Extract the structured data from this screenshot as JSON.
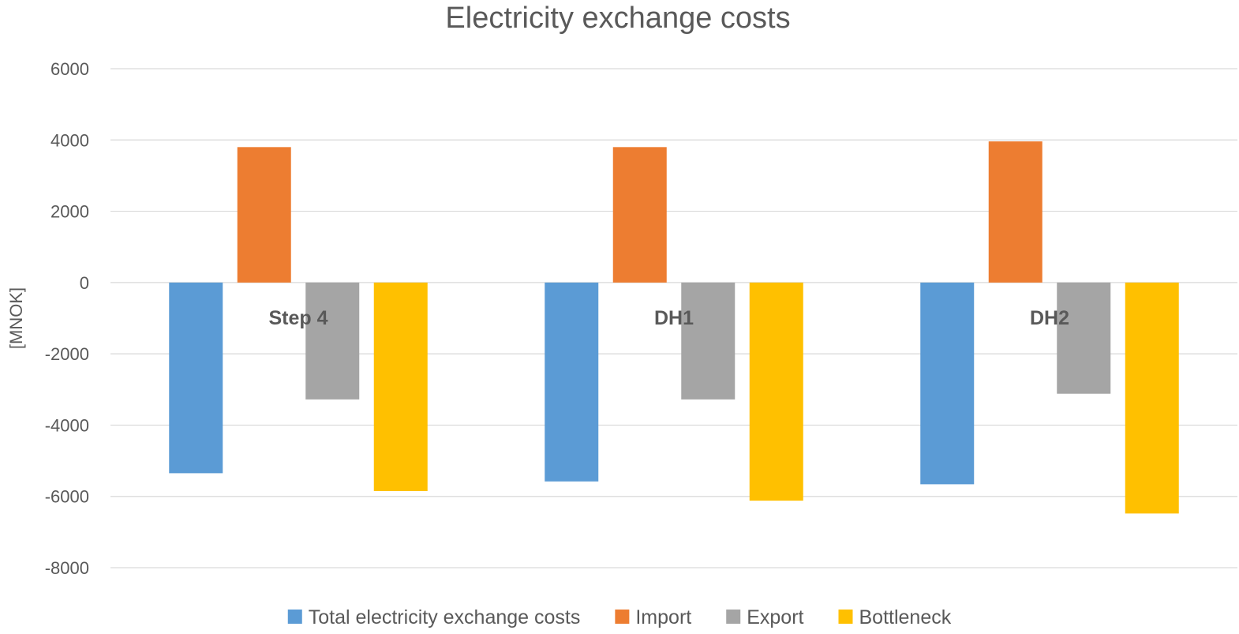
{
  "chart_data": {
    "type": "bar",
    "title": "Electricity exchange costs",
    "ylabel": "[MNOK]",
    "xlabel": "",
    "ylim": [
      -8000,
      6000
    ],
    "yticks": [
      6000,
      4000,
      2000,
      0,
      -2000,
      -4000,
      -6000,
      -8000
    ],
    "grid": true,
    "legend_position": "bottom",
    "categories": [
      "Step 4",
      "DH1",
      "DH2"
    ],
    "series": [
      {
        "name": "Total electricity exchange costs",
        "color": "#5B9BD5",
        "values": [
          -5350,
          -5580,
          -5660
        ]
      },
      {
        "name": "Import",
        "color": "#ED7D31",
        "values": [
          3800,
          3800,
          3960
        ]
      },
      {
        "name": "Export",
        "color": "#A5A5A5",
        "values": [
          -3280,
          -3280,
          -3120
        ]
      },
      {
        "name": "Bottleneck",
        "color": "#FFC000",
        "values": [
          -5850,
          -6120,
          -6480
        ]
      }
    ]
  }
}
